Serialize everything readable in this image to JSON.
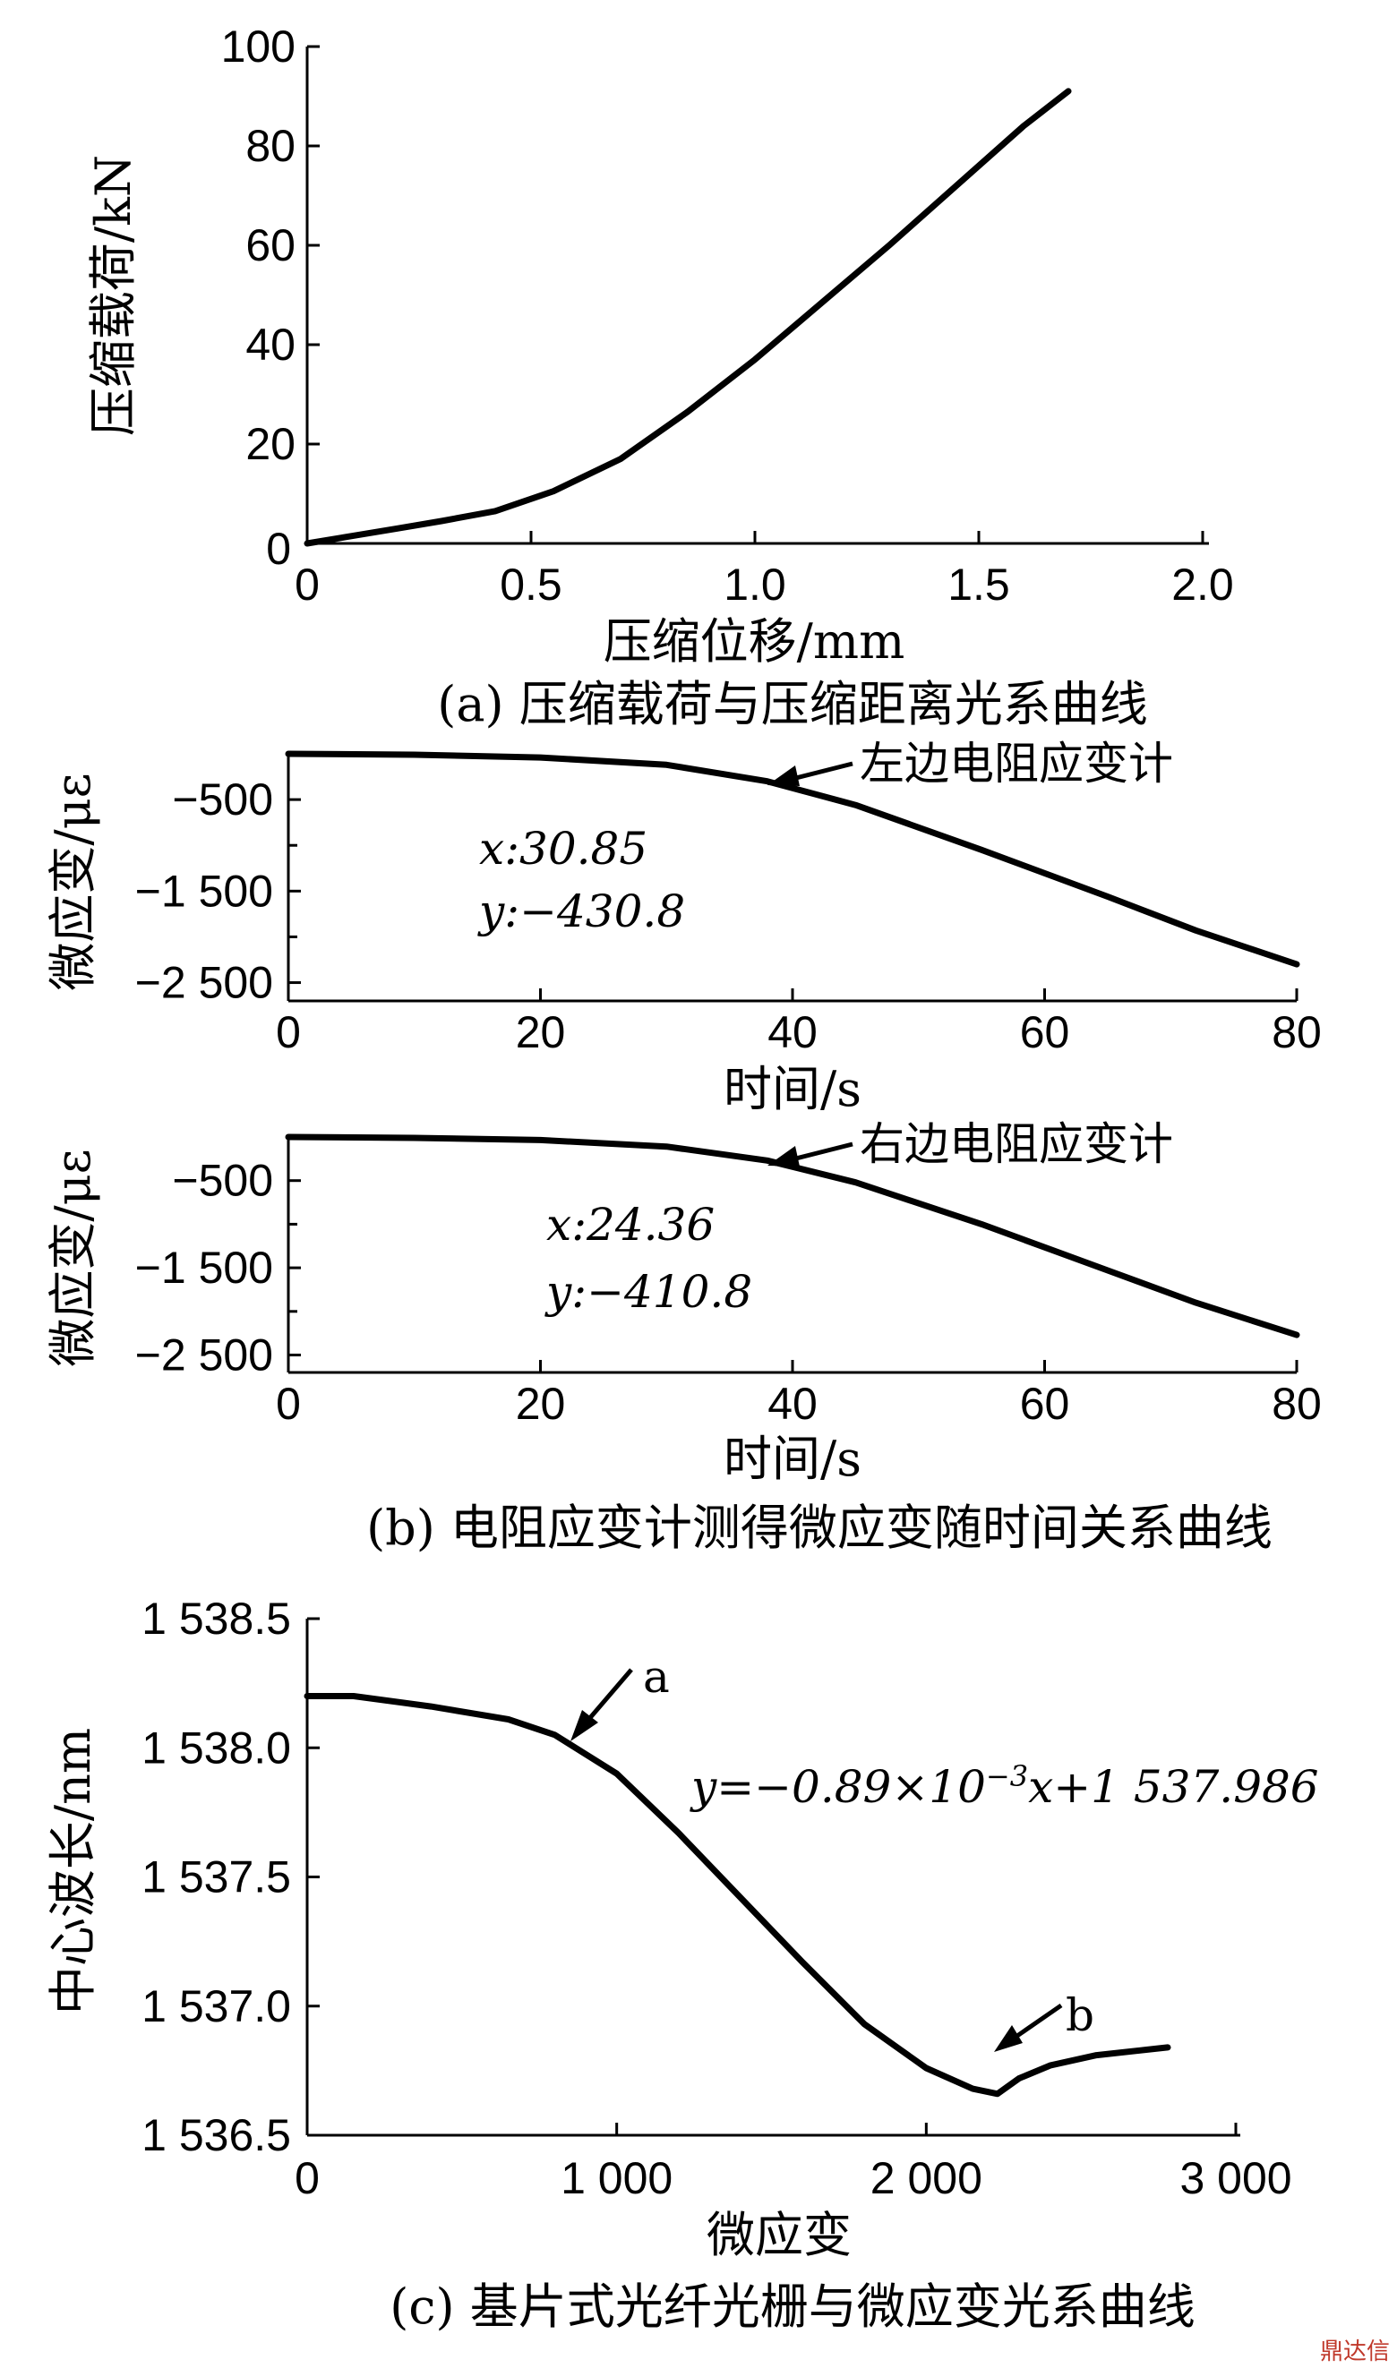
{
  "chart_data": [
    {
      "type": "line",
      "ylabel": "压缩载荷/kN",
      "xlabel": "压缩位移/mm",
      "caption": "(a) 压缩载荷与压缩距离光系曲线",
      "xlim": [
        0,
        2.0
      ],
      "ylim": [
        0,
        100
      ],
      "xticks": [
        0,
        0.5,
        1.0,
        1.5,
        2.0
      ],
      "xtick_labels": [
        "0",
        "0.5",
        "1.0",
        "1.5",
        "2.0"
      ],
      "yticks": [
        20,
        40,
        60,
        80,
        100
      ],
      "ytick_labels": [
        "20",
        "40",
        "60",
        "80",
        "100"
      ],
      "series": [
        {
          "x": [
            0,
            0.1,
            0.2,
            0.3,
            0.42,
            0.55,
            0.7,
            0.85,
            1.0,
            1.15,
            1.3,
            1.45,
            1.6,
            1.7
          ],
          "y": [
            0,
            1.5,
            3,
            4.5,
            6.5,
            10.5,
            17,
            26.5,
            37,
            48.5,
            60,
            72,
            84,
            91
          ]
        }
      ]
    },
    {
      "type": "line",
      "ylabel": "微应变/με",
      "xlabel": "时间/s",
      "xlim": [
        0,
        80
      ],
      "ylim": [
        -2700,
        0
      ],
      "xticks": [
        0,
        20,
        40,
        60,
        80
      ],
      "xtick_labels": [
        "0",
        "20",
        "40",
        "60",
        "80"
      ],
      "yticks": [
        -500,
        -1500,
        -2500
      ],
      "ytick_labels": [
        "−500",
        "−1 500",
        "−2 500"
      ],
      "annotation": "左边电阻应变计",
      "readout": {
        "x": "x:30.85",
        "y": "y:−430.8"
      },
      "series": [
        {
          "x": [
            0,
            10,
            20,
            30,
            38,
            45,
            55,
            65,
            72,
            80
          ],
          "y": [
            0,
            -10,
            -40,
            -120,
            -300,
            -560,
            -1050,
            -1560,
            -1930,
            -2300
          ]
        }
      ]
    },
    {
      "type": "line",
      "ylabel": "微应变/με",
      "xlabel": "时间/s",
      "caption": "(b) 电阻应变计测得微应变随时间关系曲线",
      "xlim": [
        0,
        80
      ],
      "ylim": [
        -2700,
        0
      ],
      "xticks": [
        0,
        20,
        40,
        60,
        80
      ],
      "xtick_labels": [
        "0",
        "20",
        "40",
        "60",
        "80"
      ],
      "yticks": [
        -500,
        -1500,
        -2500
      ],
      "ytick_labels": [
        "−500",
        "−1 500",
        "−2 500"
      ],
      "annotation": "右边电阻应变计",
      "readout": {
        "x": "x:24.36",
        "y": "y:−410.8"
      },
      "series": [
        {
          "x": [
            0,
            10,
            20,
            30,
            38,
            45,
            55,
            65,
            72,
            80
          ],
          "y": [
            0,
            -10,
            -35,
            -110,
            -270,
            -520,
            -1000,
            -1530,
            -1900,
            -2270
          ]
        }
      ]
    },
    {
      "type": "line",
      "ylabel": "中心波长/nm",
      "xlabel": "微应变",
      "caption": "(c) 基片式光纤光栅与微应变光系曲线",
      "xlim": [
        0,
        3000
      ],
      "ylim": [
        1536.5,
        1538.5
      ],
      "xticks": [
        0,
        1000,
        2000,
        3000
      ],
      "xtick_labels": [
        "0",
        "1 000",
        "2 000",
        "3 000"
      ],
      "yticks": [
        1536.5,
        1537.0,
        1537.5,
        1538.0,
        1538.5
      ],
      "ytick_labels": [
        "1 536.5",
        "1 537.0",
        "1 537.5",
        "1 538.0",
        "1 538.5"
      ],
      "equation": "y=−0.89×10−3x+1 537.986",
      "point_labels": [
        "a",
        "b"
      ],
      "series": [
        {
          "x": [
            0,
            150,
            400,
            650,
            800,
            1000,
            1200,
            1400,
            1600,
            1800,
            2000,
            2150,
            2230,
            2300,
            2400,
            2550,
            2780
          ],
          "y": [
            1538.2,
            1538.2,
            1538.16,
            1538.11,
            1538.05,
            1537.9,
            1537.67,
            1537.42,
            1537.17,
            1536.93,
            1536.76,
            1536.68,
            1536.66,
            1536.72,
            1536.77,
            1536.81,
            1536.84
          ]
        }
      ]
    }
  ],
  "watermark": "鼎达信"
}
